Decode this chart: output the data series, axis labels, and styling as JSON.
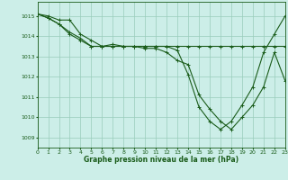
{
  "title": "Graphe pression niveau de la mer (hPa)",
  "background_color": "#cceee8",
  "grid_color": "#99ccbb",
  "line_color": "#1a5c1a",
  "xlim": [
    0,
    23
  ],
  "ylim": [
    1008.5,
    1015.7
  ],
  "yticks": [
    1009,
    1010,
    1011,
    1012,
    1013,
    1014,
    1015
  ],
  "xticks": [
    0,
    1,
    2,
    3,
    4,
    5,
    6,
    7,
    8,
    9,
    10,
    11,
    12,
    13,
    14,
    15,
    16,
    17,
    18,
    19,
    20,
    21,
    22,
    23
  ],
  "series1": [
    1015.1,
    1015.0,
    1014.8,
    1014.8,
    1014.1,
    1013.8,
    1013.5,
    1013.5,
    1013.5,
    1013.5,
    1013.5,
    1013.5,
    1013.5,
    1013.5,
    1013.5,
    1013.5,
    1013.5,
    1013.5,
    1013.5,
    1013.5,
    1013.5,
    1013.5,
    1013.5,
    1013.5
  ],
  "series2": [
    1015.1,
    1014.9,
    1014.6,
    1014.1,
    1013.8,
    1013.5,
    1013.5,
    1013.6,
    1013.5,
    1013.5,
    1013.4,
    1013.4,
    1013.2,
    1012.8,
    1012.6,
    1011.1,
    1010.4,
    1009.8,
    1009.4,
    1010.0,
    1010.6,
    1011.5,
    1013.2,
    1011.8
  ],
  "series3": [
    1015.1,
    1014.9,
    1014.6,
    1014.2,
    1013.9,
    1013.5,
    1013.5,
    1013.5,
    1013.5,
    1013.5,
    1013.5,
    1013.5,
    1013.5,
    1013.3,
    1012.1,
    1010.5,
    1009.8,
    1009.4,
    1009.8,
    1010.6,
    1011.5,
    1013.2,
    1014.1,
    1015.0
  ]
}
